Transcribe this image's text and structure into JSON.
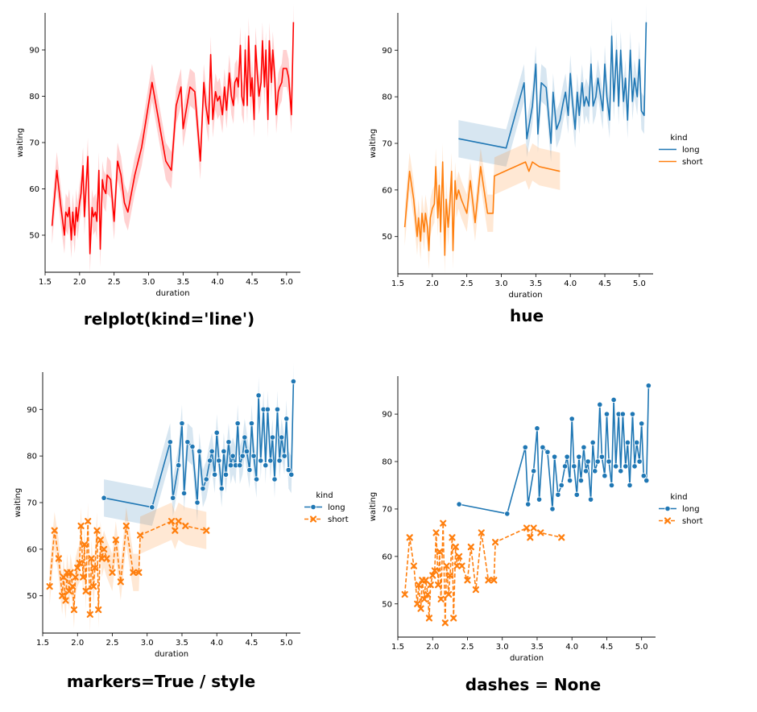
{
  "colors": {
    "long": "#1f77b4",
    "short": "#ff7f0e",
    "single": "#ff0000",
    "axis": "#000000"
  },
  "captions": [
    "relplot(kind='line')",
    "hue",
    "markers=True / style",
    "dashes = None"
  ],
  "chart_data": [
    {
      "type": "line",
      "xlabel": "duration",
      "ylabel": "waiting",
      "xlim": [
        1.5,
        5.2
      ],
      "ylim": [
        42,
        98
      ],
      "xticks": [
        "1.5",
        "2.0",
        "2.5",
        "3.0",
        "3.5",
        "4.0",
        "4.5",
        "5.0"
      ],
      "yticks": [
        "50",
        "60",
        "70",
        "80",
        "90"
      ],
      "hue": false,
      "markers": false,
      "dashed_short": false,
      "legend": null,
      "series": [
        {
          "key": "all",
          "x": [
            1.6,
            1.67,
            1.73,
            1.78,
            1.8,
            1.83,
            1.85,
            1.88,
            1.9,
            1.93,
            1.95,
            1.97,
            2.0,
            2.02,
            2.05,
            2.07,
            2.1,
            2.12,
            2.15,
            2.18,
            2.2,
            2.23,
            2.25,
            2.28,
            2.3,
            2.33,
            2.35,
            2.38,
            2.4,
            2.45,
            2.5,
            2.55,
            2.6,
            2.65,
            2.7,
            2.8,
            2.9,
            3.05,
            3.25,
            3.33,
            3.4,
            3.47,
            3.5,
            3.6,
            3.67,
            3.75,
            3.8,
            3.83,
            3.87,
            3.9,
            3.93,
            3.97,
            4.0,
            4.03,
            4.07,
            4.1,
            4.13,
            4.17,
            4.2,
            4.23,
            4.25,
            4.28,
            4.3,
            4.33,
            4.35,
            4.38,
            4.4,
            4.43,
            4.45,
            4.48,
            4.5,
            4.53,
            4.55,
            4.58,
            4.6,
            4.63,
            4.65,
            4.68,
            4.7,
            4.73,
            4.75,
            4.78,
            4.8,
            4.83,
            4.85,
            4.88,
            4.9,
            4.93,
            4.95,
            5.0,
            5.03,
            5.07,
            5.1
          ],
          "y": [
            52,
            64,
            56,
            50,
            55,
            54,
            56,
            49,
            55,
            50,
            56,
            53,
            57,
            59,
            65,
            54,
            62,
            67,
            46,
            56,
            54,
            55,
            53,
            64,
            47,
            62,
            60,
            59,
            63,
            62,
            53,
            66,
            63,
            57,
            55,
            63,
            69,
            83,
            66,
            64,
            78,
            82,
            73,
            82,
            81,
            66,
            83,
            78,
            74,
            89,
            75,
            81,
            79,
            80,
            76,
            82,
            77,
            85,
            80,
            78,
            83,
            84,
            82,
            91,
            80,
            78,
            90,
            78,
            93,
            80,
            84,
            75,
            91,
            84,
            80,
            83,
            92,
            82,
            90,
            75,
            92,
            83,
            90,
            84,
            76,
            81,
            82,
            83,
            86,
            86,
            84,
            76,
            96
          ],
          "band": 4
        }
      ]
    },
    {
      "type": "line",
      "xlabel": "duration",
      "ylabel": "waiting",
      "xlim": [
        1.5,
        5.2
      ],
      "ylim": [
        42,
        98
      ],
      "xticks": [
        "1.5",
        "2.0",
        "2.5",
        "3.0",
        "3.5",
        "4.0",
        "4.5",
        "5.0"
      ],
      "yticks": [
        "50",
        "60",
        "70",
        "80",
        "90"
      ],
      "hue": true,
      "markers": false,
      "dashed_short": false,
      "legend": {
        "title": "kind",
        "entries": [
          "long",
          "short"
        ]
      },
      "series": [
        {
          "name": "long",
          "key": "long",
          "x": [
            2.38,
            3.07,
            3.33,
            3.37,
            3.45,
            3.5,
            3.53,
            3.58,
            3.65,
            3.72,
            3.75,
            3.8,
            3.85,
            3.9,
            3.93,
            3.97,
            4.0,
            4.03,
            4.07,
            4.1,
            4.13,
            4.17,
            4.2,
            4.23,
            4.27,
            4.3,
            4.33,
            4.37,
            4.4,
            4.43,
            4.47,
            4.5,
            4.53,
            4.57,
            4.6,
            4.63,
            4.67,
            4.7,
            4.73,
            4.77,
            4.8,
            4.83,
            4.87,
            4.9,
            4.93,
            4.97,
            5.0,
            5.03,
            5.07,
            5.1
          ],
          "y": [
            71,
            69,
            83,
            71,
            78,
            87,
            72,
            83,
            82,
            70,
            81,
            73,
            75,
            79,
            81,
            76,
            85,
            79,
            73,
            81,
            76,
            83,
            78,
            80,
            78,
            87,
            78,
            80,
            84,
            81,
            77,
            87,
            80,
            75,
            93,
            79,
            90,
            78,
            90,
            79,
            84,
            75,
            90,
            79,
            84,
            80,
            88,
            77,
            76,
            96
          ],
          "band": 4
        },
        {
          "name": "short",
          "key": "short",
          "x": [
            1.6,
            1.67,
            1.73,
            1.78,
            1.8,
            1.83,
            1.85,
            1.88,
            1.9,
            1.93,
            1.95,
            1.97,
            2.0,
            2.03,
            2.05,
            2.08,
            2.1,
            2.12,
            2.15,
            2.18,
            2.2,
            2.23,
            2.25,
            2.28,
            2.3,
            2.33,
            2.35,
            2.38,
            2.42,
            2.5,
            2.55,
            2.62,
            2.7,
            2.8,
            2.88,
            2.9,
            3.35,
            3.4,
            3.45,
            3.55,
            3.85
          ],
          "y": [
            52,
            64,
            58,
            50,
            54,
            49,
            55,
            51,
            55,
            52,
            47,
            54,
            56,
            57,
            65,
            54,
            61,
            51,
            66,
            46,
            58,
            52,
            56,
            64,
            47,
            62,
            58,
            60,
            58,
            55,
            62,
            53,
            65,
            55,
            55,
            63,
            66,
            64,
            66,
            65,
            64
          ],
          "band": 4
        }
      ]
    },
    {
      "type": "line",
      "xlabel": "duration",
      "ylabel": "waiting",
      "xlim": [
        1.5,
        5.2
      ],
      "ylim": [
        42,
        98
      ],
      "xticks": [
        "1.5",
        "2.0",
        "2.5",
        "3.0",
        "3.5",
        "4.0",
        "4.5",
        "5.0"
      ],
      "yticks": [
        "50",
        "60",
        "70",
        "80",
        "90"
      ],
      "hue": true,
      "markers": true,
      "dashed_short": true,
      "legend": {
        "title": "kind",
        "entries": [
          "long",
          "short"
        ]
      },
      "series": [
        {
          "name": "long",
          "key": "long",
          "x": [
            2.38,
            3.07,
            3.33,
            3.37,
            3.45,
            3.5,
            3.53,
            3.58,
            3.65,
            3.72,
            3.75,
            3.8,
            3.85,
            3.9,
            3.93,
            3.97,
            4.0,
            4.03,
            4.07,
            4.1,
            4.13,
            4.17,
            4.2,
            4.23,
            4.27,
            4.3,
            4.33,
            4.37,
            4.4,
            4.43,
            4.47,
            4.5,
            4.53,
            4.57,
            4.6,
            4.63,
            4.67,
            4.7,
            4.73,
            4.77,
            4.8,
            4.83,
            4.87,
            4.9,
            4.93,
            4.97,
            5.0,
            5.03,
            5.07,
            5.1
          ],
          "y": [
            71,
            69,
            83,
            71,
            78,
            87,
            72,
            83,
            82,
            70,
            81,
            73,
            75,
            79,
            81,
            76,
            85,
            79,
            73,
            81,
            76,
            83,
            78,
            80,
            78,
            87,
            78,
            80,
            84,
            81,
            77,
            87,
            80,
            75,
            93,
            79,
            90,
            78,
            90,
            79,
            84,
            75,
            90,
            79,
            84,
            80,
            88,
            77,
            76,
            96
          ],
          "band": 4
        },
        {
          "name": "short",
          "key": "short",
          "x": [
            1.6,
            1.67,
            1.73,
            1.78,
            1.8,
            1.83,
            1.85,
            1.88,
            1.9,
            1.93,
            1.95,
            1.97,
            2.0,
            2.03,
            2.05,
            2.08,
            2.1,
            2.12,
            2.15,
            2.18,
            2.2,
            2.23,
            2.25,
            2.28,
            2.3,
            2.33,
            2.35,
            2.38,
            2.42,
            2.5,
            2.55,
            2.62,
            2.7,
            2.8,
            2.88,
            2.9,
            3.35,
            3.4,
            3.45,
            3.55,
            3.85
          ],
          "y": [
            52,
            64,
            58,
            50,
            54,
            49,
            55,
            51,
            55,
            52,
            47,
            54,
            56,
            57,
            65,
            54,
            61,
            51,
            66,
            46,
            58,
            52,
            56,
            64,
            47,
            62,
            58,
            60,
            58,
            55,
            62,
            53,
            65,
            55,
            55,
            63,
            66,
            64,
            66,
            65,
            64
          ],
          "band": 4
        }
      ]
    },
    {
      "type": "line",
      "xlabel": "duration",
      "ylabel": "waiting",
      "xlim": [
        1.5,
        5.2
      ],
      "ylim": [
        43,
        98
      ],
      "xticks": [
        "1.5",
        "2.0",
        "2.5",
        "3.0",
        "3.5",
        "4.0",
        "4.5",
        "5.0"
      ],
      "yticks": [
        "50",
        "60",
        "70",
        "80",
        "90"
      ],
      "hue": true,
      "markers": true,
      "dashed_short": true,
      "legend": {
        "title": "kind",
        "entries": [
          "long",
          "short"
        ]
      },
      "series": [
        {
          "name": "long",
          "key": "long",
          "x": [
            2.38,
            3.07,
            3.33,
            3.37,
            3.45,
            3.5,
            3.53,
            3.58,
            3.65,
            3.72,
            3.75,
            3.8,
            3.85,
            3.9,
            3.93,
            3.97,
            4.0,
            4.03,
            4.07,
            4.1,
            4.13,
            4.17,
            4.2,
            4.23,
            4.27,
            4.3,
            4.33,
            4.37,
            4.4,
            4.43,
            4.47,
            4.5,
            4.53,
            4.57,
            4.6,
            4.63,
            4.67,
            4.7,
            4.73,
            4.77,
            4.8,
            4.83,
            4.87,
            4.9,
            4.93,
            4.97,
            5.0,
            5.03,
            5.07,
            5.1
          ],
          "y": [
            71,
            69,
            83,
            71,
            78,
            87,
            72,
            83,
            82,
            70,
            81,
            73,
            75,
            79,
            81,
            76,
            89,
            79,
            73,
            81,
            76,
            83,
            78,
            80,
            72,
            84,
            78,
            80,
            92,
            81,
            77,
            90,
            80,
            75,
            93,
            79,
            90,
            78,
            90,
            79,
            84,
            75,
            90,
            79,
            84,
            80,
            88,
            77,
            76,
            96
          ],
          "band": 0
        },
        {
          "name": "short",
          "key": "short",
          "x": [
            1.6,
            1.67,
            1.73,
            1.78,
            1.8,
            1.83,
            1.85,
            1.88,
            1.9,
            1.93,
            1.95,
            1.97,
            2.0,
            2.03,
            2.05,
            2.08,
            2.1,
            2.12,
            2.15,
            2.18,
            2.2,
            2.23,
            2.25,
            2.28,
            2.3,
            2.33,
            2.35,
            2.38,
            2.42,
            2.5,
            2.55,
            2.62,
            2.7,
            2.8,
            2.88,
            2.9,
            3.35,
            3.4,
            3.45,
            3.55,
            3.85
          ],
          "y": [
            52,
            64,
            58,
            50,
            54,
            49,
            55,
            51,
            55,
            52,
            47,
            54,
            56,
            57,
            65,
            54,
            61,
            51,
            67,
            46,
            58,
            52,
            56,
            64,
            47,
            62,
            58,
            60,
            58,
            55,
            62,
            53,
            65,
            55,
            55,
            63,
            66,
            64,
            66,
            65,
            64
          ],
          "band": 0
        }
      ]
    }
  ]
}
